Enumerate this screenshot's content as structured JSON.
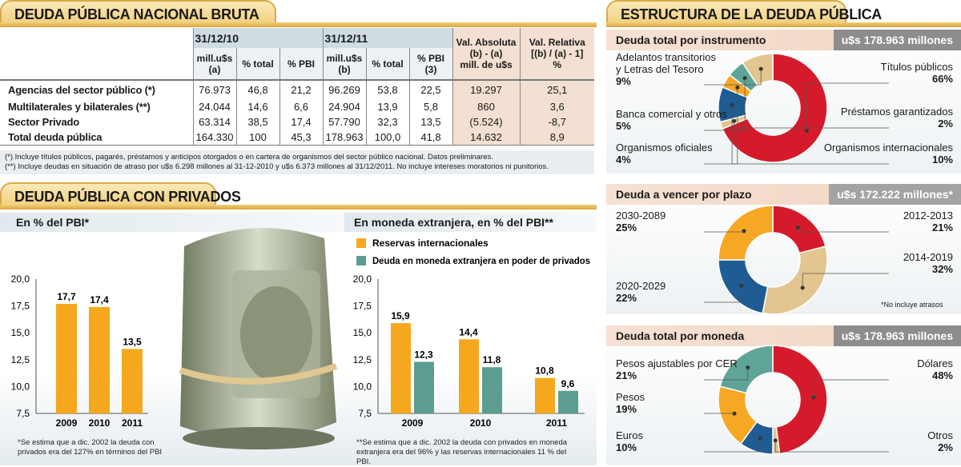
{
  "left": {
    "title": "DEUDA PÚBLICA NACIONAL BRUTA",
    "table": {
      "groups": [
        "31/12/10",
        "31/12/11",
        "Val. Absoluta\n(b) - (a)\nmill. de u$s",
        "Val. Relativa\n[(b) / (a) - 1]\n%"
      ],
      "subheaders": [
        "mill.u$s (a)",
        "% total",
        "% PBI",
        "mill.u$s (b)",
        "% total",
        "% PBI (3)"
      ],
      "rows": [
        {
          "label": "Agencias del sector público (*)",
          "cells": [
            "76.973",
            "46,8",
            "21,2",
            "96.269",
            "53,8",
            "22,5",
            "19.297",
            "25,1"
          ]
        },
        {
          "label": "Multilaterales y bilaterales (**)",
          "cells": [
            "24.044",
            "14,6",
            "6,6",
            "24.904",
            "13,9",
            "5,8",
            "860",
            "3,6"
          ]
        },
        {
          "label": "Sector Privado",
          "cells": [
            "63.314",
            "38,5",
            "17,4",
            "57.790",
            "32,3",
            "13,5",
            "(5.524)",
            "-8,7"
          ]
        },
        {
          "label": "Total deuda pública",
          "cells": [
            "164.330",
            "100",
            "45,3",
            "178.963",
            "100,0",
            "41,8",
            "14.632",
            "8,9"
          ]
        }
      ],
      "footnotes": [
        "(*)  Incluye títulos públicos, pagarés, préstamos y anticipos otorgados o en cartera de organismos del sector público nacional. Datos preliminares.",
        "(**) Incluye deudas en situación de atraso por u$s 6.298 millones al 31-12-2010 y u$s 6.373 millones al 31/12/2011. No incluye intereses moratorios ni punitorios."
      ]
    },
    "section2_title": "DEUDA PÚBLICA CON PRIVADOS",
    "band_left": "En % del PBI*",
    "band_right": "En moneda extranjera, en % del PBI**",
    "note_left": "*Se estima que a dic. 2002 la deuda con privados era del 127% en términos del PBI",
    "note_right": "**Se estima que a dic. 2002 la deuda con privados en moneda extranjera era del  96% y las reservas internacionales 11 % del PBI."
  },
  "right": {
    "title": "ESTRUCTURA DE LA DEUDA PÚBLICA",
    "panels": [
      {
        "header": "Deuda total por instrumento",
        "value": "u$s 178.963 millones"
      },
      {
        "header": "Deuda a vencer por plazo",
        "value": "u$s 172.222 millones*",
        "note": "*No incluye atrasos"
      },
      {
        "header": "Deuda total por moneda",
        "value": "u$s 178.963 millones"
      }
    ]
  },
  "colors": {
    "red": "#d51b2b",
    "tan": "#e3c590",
    "blue": "#1e5c93",
    "orange": "#f6a824",
    "teal": "#5fa597",
    "bar_orange": "#f5a81e",
    "bar_teal": "#5c9d91"
  },
  "chart_data": [
    {
      "type": "bar",
      "categories": [
        "2009",
        "2010",
        "2011"
      ],
      "values": [
        17.7,
        17.4,
        13.5
      ],
      "labels": [
        "17,7",
        "17,4",
        "13,5"
      ],
      "ylim": [
        7.5,
        20
      ],
      "yticks": [
        "20,0",
        "17,5",
        "15,0",
        "12,5",
        "10,0",
        "7,5"
      ],
      "grid": false
    },
    {
      "type": "bar",
      "categories": [
        "2009",
        "2010",
        "2011"
      ],
      "series": [
        {
          "name": "Reservas internacionales",
          "values": [
            15.9,
            14.4,
            10.8
          ],
          "labels": [
            "15,9",
            "14,4",
            "10,8"
          ]
        },
        {
          "name": "Deuda en moneda extranjera en poder de privados",
          "values": [
            12.3,
            11.8,
            9.6
          ],
          "labels": [
            "12,3",
            "11,8",
            "9,6"
          ]
        }
      ],
      "ylim": [
        7.5,
        20
      ],
      "yticks": [
        "20,0",
        "17,5",
        "15,0",
        "12,5",
        "10,0",
        "7,5"
      ],
      "legend": "top-left",
      "grid": false
    },
    {
      "type": "pie",
      "title": "Deuda total por instrumento",
      "slices": [
        {
          "label": "Títulos públicos",
          "value": 66,
          "pct": "66%",
          "color": "red"
        },
        {
          "label": "Préstamos garantizados",
          "value": 2,
          "pct": "2%",
          "color": "tan"
        },
        {
          "label": "Organismos internacionales",
          "value": 10,
          "pct": "10%",
          "color": "blue"
        },
        {
          "label": "Organismos oficiales",
          "value": 4,
          "pct": "4%",
          "color": "orange"
        },
        {
          "label": "Banca comercial y otros",
          "value": 5,
          "pct": "5%",
          "color": "teal"
        },
        {
          "label": "Adelantos transitorios\ny Letras del Tesoro",
          "value": 9,
          "pct": "9%",
          "color": "tan"
        }
      ]
    },
    {
      "type": "pie",
      "title": "Deuda a vencer por plazo",
      "slices": [
        {
          "label": "2012-2013",
          "value": 21,
          "pct": "21%",
          "color": "red"
        },
        {
          "label": "2014-2019",
          "value": 32,
          "pct": "32%",
          "color": "tan"
        },
        {
          "label": "2020-2029",
          "value": 22,
          "pct": "22%",
          "color": "blue"
        },
        {
          "label": "2030-2089",
          "value": 25,
          "pct": "25%",
          "color": "orange"
        }
      ]
    },
    {
      "type": "pie",
      "title": "Deuda total por moneda",
      "slices": [
        {
          "label": "Dólares",
          "value": 48,
          "pct": "48%",
          "color": "red"
        },
        {
          "label": "Otros",
          "value": 2,
          "pct": "2%",
          "color": "tan"
        },
        {
          "label": "Euros",
          "value": 10,
          "pct": "10%",
          "color": "blue"
        },
        {
          "label": "Pesos",
          "value": 19,
          "pct": "19%",
          "color": "orange"
        },
        {
          "label": "Pesos ajustables por CER",
          "value": 21,
          "pct": "21%",
          "color": "teal"
        }
      ]
    }
  ]
}
